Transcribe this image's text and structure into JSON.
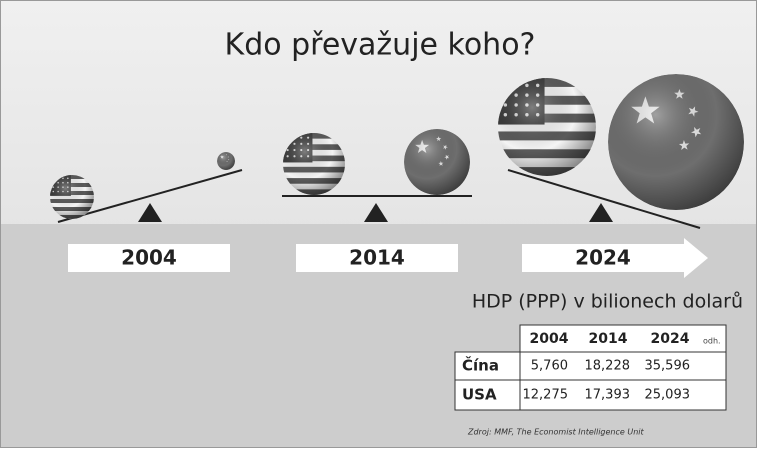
{
  "title": "Kdo převažuje koho?",
  "timeline": [
    "2004",
    "2014",
    "2024"
  ],
  "table": {
    "title": "HDP (PPP) v bilionech dolarů",
    "header": [
      "2004",
      "2014",
      "2024"
    ],
    "header_note": "odh.",
    "rows": [
      [
        "Čína",
        "5,760",
        "18,228",
        "35,596"
      ],
      [
        "USA",
        "12,275",
        "17,393",
        "25,093"
      ]
    ]
  },
  "source": "Zdroj: MMF, The Economist Intelligence Unit"
}
